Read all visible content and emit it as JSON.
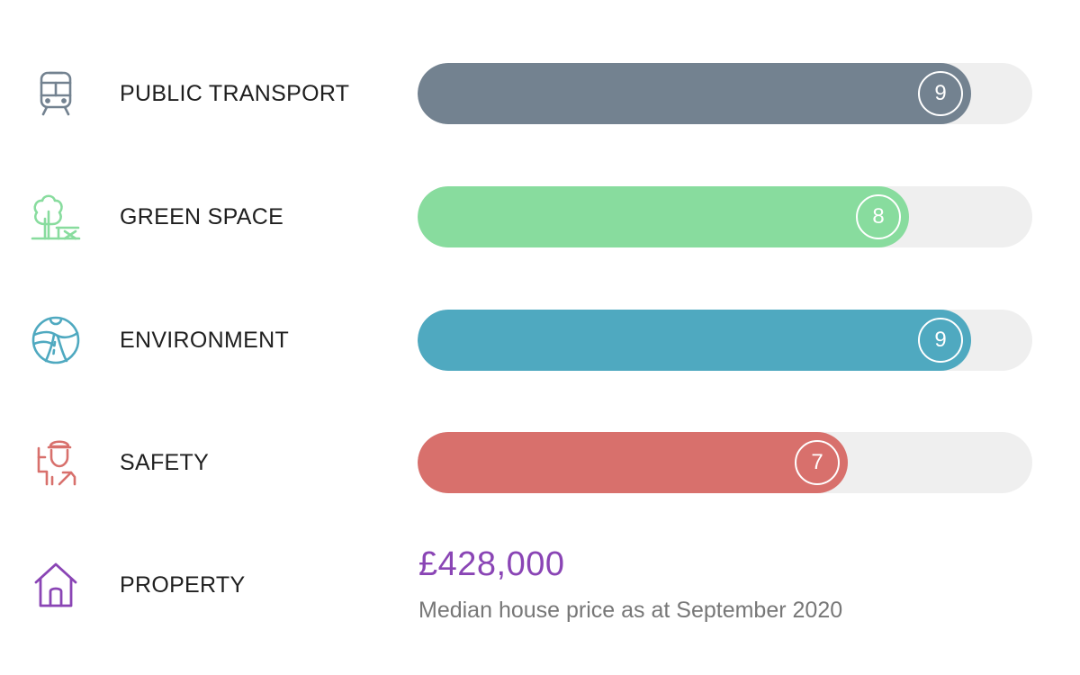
{
  "metrics": [
    {
      "label": "PUBLIC TRANSPORT",
      "score": "9",
      "fill_fraction": 0.9,
      "color": "#738290",
      "icon": "train-icon"
    },
    {
      "label": "GREEN SPACE",
      "score": "8",
      "fill_fraction": 0.8,
      "color": "#88dc9e",
      "icon": "tree-bench-icon"
    },
    {
      "label": "ENVIRONMENT",
      "score": "9",
      "fill_fraction": 0.9,
      "color": "#4fa9c0",
      "icon": "road-landscape-icon"
    },
    {
      "label": "SAFETY",
      "score": "7",
      "fill_fraction": 0.7,
      "color": "#d8706c",
      "icon": "police-officer-icon"
    }
  ],
  "property": {
    "label": "PROPERTY",
    "icon": "house-icon",
    "color": "#8a45b5",
    "price": "£428,000",
    "note": "Median house price as at September 2020"
  }
}
